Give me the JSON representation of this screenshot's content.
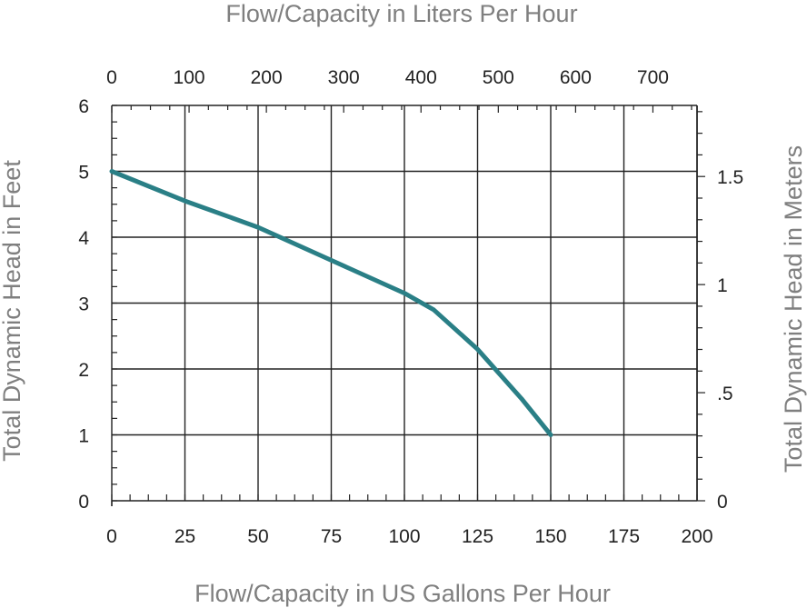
{
  "chart_data": {
    "type": "line",
    "title": "",
    "x_label_bottom": "Flow/Capacity in US Gallons Per Hour",
    "x_label_top": "Flow/Capacity in Liters Per Hour",
    "y_label_left": "Total Dynamic Head in Feet",
    "y_label_right": "Total Dynamic Head in Meters",
    "x_ticks_bottom": [
      "0",
      "25",
      "50",
      "75",
      "100",
      "125",
      "150",
      "175",
      "200"
    ],
    "x_ticks_top": [
      "0",
      "100",
      "200",
      "300",
      "400",
      "500",
      "600",
      "700"
    ],
    "y_ticks_left": [
      "0",
      "1",
      "2",
      "3",
      "4",
      "5",
      "6"
    ],
    "y_ticks_right": [
      "0",
      ".5",
      "1",
      "1.5"
    ],
    "xlim": [
      0,
      200
    ],
    "ylim": [
      0,
      6
    ],
    "grid": true,
    "series": [
      {
        "x": [
          0,
          25,
          50,
          75,
          100,
          110,
          125,
          140,
          150
        ],
        "y": [
          5.0,
          4.55,
          4.15,
          3.65,
          3.15,
          2.9,
          2.3,
          1.55,
          1.0
        ]
      }
    ],
    "colors": {
      "line": "#2a7f86",
      "axis_title": "#7f7f7f",
      "grid": "#222222"
    }
  }
}
